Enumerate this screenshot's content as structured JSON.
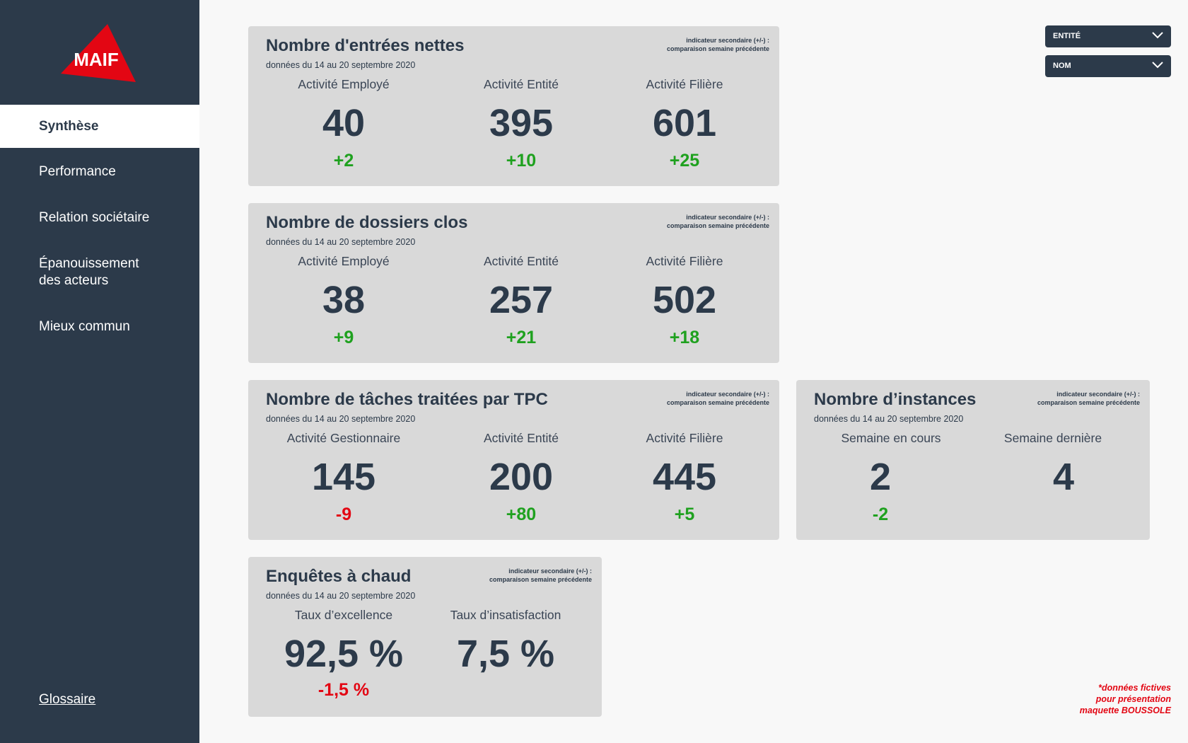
{
  "brand": {
    "logo_text": "MAIF",
    "logo_color": "#e30613",
    "sidebar_color": "#2c3a4a"
  },
  "nav": {
    "items": [
      {
        "label": "Synthèse",
        "active": true
      },
      {
        "label": "Performance"
      },
      {
        "label": "Relation sociétaire"
      },
      {
        "label": "Épanouissement des acteurs"
      },
      {
        "label": "Mieux commun"
      }
    ],
    "glossary": "Glossaire"
  },
  "filters": {
    "entity_label": "ENTITÉ",
    "name_label": "NOM"
  },
  "note": {
    "line1": "indicateur secondaire (+/-) :",
    "line2": "comparaison semaine précédente"
  },
  "period": "données du 14 au 20 septembre 2020",
  "cards": {
    "entrees": {
      "title": "Nombre d'entrées nettes",
      "metrics": [
        {
          "label": "Activité Employé",
          "value": "40",
          "delta": "+2"
        },
        {
          "label": "Activité Entité",
          "value": "395",
          "delta": "+10"
        },
        {
          "label": "Activité Filière",
          "value": "601",
          "delta": "+25"
        }
      ]
    },
    "dossiers": {
      "title": "Nombre de dossiers clos",
      "metrics": [
        {
          "label": "Activité Employé",
          "value": "38",
          "delta": "+9"
        },
        {
          "label": "Activité Entité",
          "value": "257",
          "delta": "+21"
        },
        {
          "label": "Activité Filière",
          "value": "502",
          "delta": "+18"
        }
      ]
    },
    "taches": {
      "title": "Nombre de tâches traitées par TPC",
      "metrics": [
        {
          "label": "Activité Gestionnaire",
          "value": "145",
          "delta": "-9"
        },
        {
          "label": "Activité Entité",
          "value": "200",
          "delta": "+80"
        },
        {
          "label": "Activité Filière",
          "value": "445",
          "delta": "+5"
        }
      ]
    },
    "instances": {
      "title": "Nombre d’instances",
      "metrics": [
        {
          "label": "Semaine en cours",
          "value": "2",
          "delta": "-2"
        },
        {
          "label": "Semaine dernière",
          "value": "4",
          "delta": ""
        }
      ]
    },
    "enquetes": {
      "title": "Enquêtes à chaud",
      "metrics": [
        {
          "label": "Taux d’excellence",
          "value": "92,5 %",
          "delta": "-1,5 %"
        },
        {
          "label": "Taux d’insatisfaction",
          "value": "7,5 %",
          "delta": ""
        }
      ]
    }
  },
  "disclaimer": {
    "line1": "*données fictives",
    "line2": "pour présentation",
    "line3_prefix": "maquette ",
    "line3_brand": "BOUSSOLE"
  },
  "colors": {
    "positive": "#1fa11f",
    "negative": "#e30613",
    "card_bg": "#d9d9d9"
  }
}
